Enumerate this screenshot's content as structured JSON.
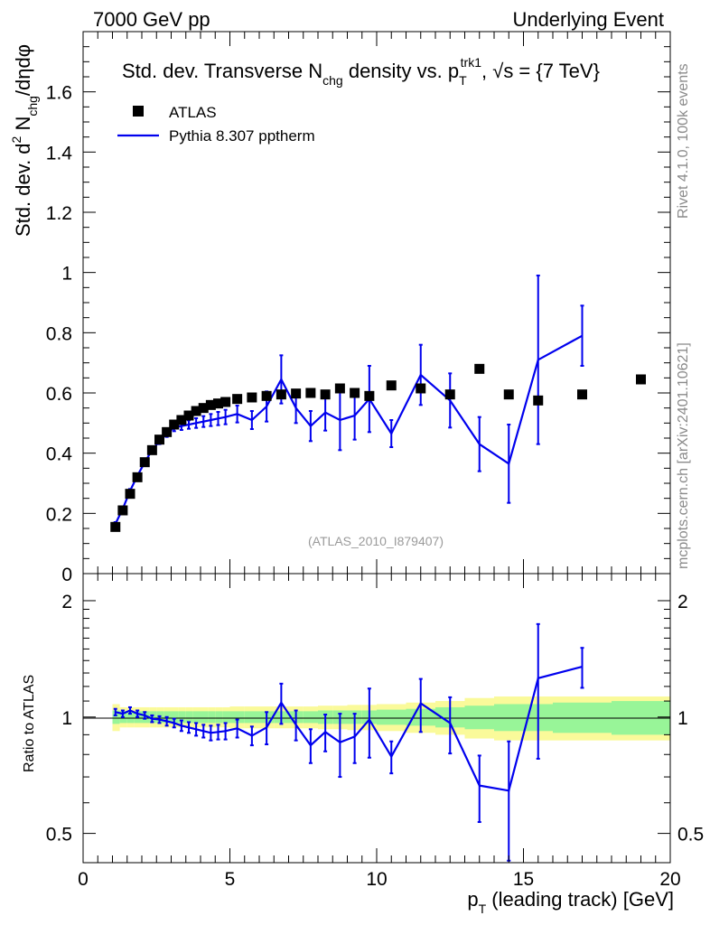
{
  "header": {
    "left": "7000 GeV pp",
    "right": "Underlying Event"
  },
  "side_labels": {
    "rivet": "Rivet 4.1.0,  100k events",
    "mcplots": "mcplots.cern.ch [arXiv:2401.10621]"
  },
  "chart_data": [
    {
      "type": "scatter",
      "title": "Std. dev. Transverse N_chg density vs. p_T^trk1, √s = {7 TeV}",
      "title_parts": {
        "t1": "Std. dev. Transverse N",
        "t2": "chg",
        "t3": " density vs. p",
        "t4": "T",
        "t5": "trk1",
        "t6": ", √s = {7 TeV}"
      },
      "ylabel_parts": {
        "a": "Std. dev. d",
        "b": "2",
        "c": " N",
        "d": "chg",
        "e": "/dηdφ"
      },
      "xlabel_parts": {
        "a": "p",
        "b": "T",
        "c": " (leading track) [GeV]"
      },
      "xlim": [
        0,
        20
      ],
      "ylim": [
        0,
        1.8
      ],
      "y_ticks": [
        0,
        0.2,
        0.4,
        0.6,
        0.8,
        1,
        1.2,
        1.4,
        1.6
      ],
      "y_tick_labels": [
        "0",
        "0.2",
        "0.4",
        "0.6",
        "0.8",
        "1",
        "1.2",
        "1.4",
        "1.6"
      ],
      "x_ticks": [
        0,
        5,
        10,
        15,
        20
      ],
      "x_tick_labels": [
        "0",
        "5",
        "10",
        "15",
        "20"
      ],
      "watermark": "(ATLAS_2010_I879407)",
      "legend": [
        {
          "name": "ATLAS",
          "marker": "square",
          "color": "#000000"
        },
        {
          "name": "Pythia 8.307 pptherm",
          "marker": "line",
          "color": "#0000ee"
        }
      ],
      "series": [
        {
          "name": "ATLAS",
          "x": [
            1.1,
            1.35,
            1.6,
            1.85,
            2.1,
            2.35,
            2.6,
            2.85,
            3.1,
            3.35,
            3.6,
            3.85,
            4.1,
            4.35,
            4.6,
            4.85,
            5.25,
            5.75,
            6.25,
            6.75,
            7.25,
            7.75,
            8.25,
            8.75,
            9.25,
            9.75,
            10.5,
            11.5,
            12.5,
            13.5,
            14.5,
            15.5,
            17.0,
            19.0
          ],
          "y": [
            0.155,
            0.21,
            0.265,
            0.32,
            0.37,
            0.41,
            0.445,
            0.47,
            0.495,
            0.51,
            0.525,
            0.54,
            0.55,
            0.56,
            0.565,
            0.57,
            0.58,
            0.585,
            0.59,
            0.595,
            0.598,
            0.6,
            0.595,
            0.615,
            0.6,
            0.59,
            0.625,
            0.615,
            0.595,
            0.68,
            0.595,
            0.575,
            0.595,
            0.645
          ]
        },
        {
          "name": "Pythia 8.307 pptherm",
          "x": [
            1.1,
            1.35,
            1.6,
            1.85,
            2.1,
            2.35,
            2.6,
            2.85,
            3.1,
            3.35,
            3.6,
            3.85,
            4.1,
            4.35,
            4.6,
            4.85,
            5.25,
            5.75,
            6.25,
            6.75,
            7.25,
            7.75,
            8.25,
            8.75,
            9.25,
            9.75,
            10.5,
            11.5,
            12.5,
            13.5,
            14.5,
            15.5,
            17.0
          ],
          "y": [
            0.165,
            0.215,
            0.275,
            0.325,
            0.37,
            0.41,
            0.44,
            0.465,
            0.485,
            0.49,
            0.495,
            0.5,
            0.505,
            0.51,
            0.515,
            0.52,
            0.53,
            0.51,
            0.555,
            0.645,
            0.55,
            0.49,
            0.535,
            0.51,
            0.525,
            0.58,
            0.465,
            0.66,
            0.575,
            0.43,
            0.365,
            0.71,
            0.79
          ],
          "yerr": [
            0.006,
            0.006,
            0.006,
            0.007,
            0.008,
            0.009,
            0.01,
            0.011,
            0.012,
            0.013,
            0.014,
            0.016,
            0.018,
            0.02,
            0.022,
            0.024,
            0.028,
            0.03,
            0.05,
            0.08,
            0.05,
            0.05,
            0.06,
            0.1,
            0.08,
            0.11,
            0.045,
            0.1,
            0.09,
            0.09,
            0.13,
            0.28,
            0.1
          ]
        }
      ]
    },
    {
      "type": "scatter",
      "title": "Ratio to ATLAS",
      "ylabel": "Ratio to ATLAS",
      "xlim": [
        0,
        20
      ],
      "ylim": [
        0.42,
        2.35
      ],
      "y_scale": "log",
      "y_ticks": [
        0.5,
        1,
        2
      ],
      "y_tick_labels": [
        "0.5",
        "1",
        "2"
      ],
      "x_ticks": [
        0,
        5,
        10,
        15,
        20
      ],
      "x_tick_labels": [
        "0",
        "5",
        "10",
        "15",
        "20"
      ],
      "bands": {
        "edges": [
          1.0,
          1.25,
          1.5,
          1.75,
          2.0,
          2.25,
          2.5,
          2.75,
          3.0,
          3.25,
          3.5,
          3.75,
          4.0,
          4.25,
          4.5,
          4.75,
          5.0,
          5.5,
          6.0,
          6.5,
          7.0,
          7.5,
          8.0,
          8.5,
          9.0,
          9.5,
          10.0,
          11.0,
          12.0,
          13.0,
          14.0,
          15.0,
          16.0,
          18.0,
          20.0
        ],
        "stat_halfwidth": [
          0.04,
          0.035,
          0.035,
          0.035,
          0.035,
          0.035,
          0.035,
          0.035,
          0.035,
          0.035,
          0.035,
          0.035,
          0.035,
          0.035,
          0.035,
          0.035,
          0.035,
          0.035,
          0.035,
          0.035,
          0.035,
          0.035,
          0.04,
          0.04,
          0.04,
          0.04,
          0.045,
          0.05,
          0.06,
          0.07,
          0.08,
          0.08,
          0.09,
          0.1
        ],
        "total_halfwidth": [
          0.08,
          0.06,
          0.06,
          0.06,
          0.06,
          0.06,
          0.06,
          0.06,
          0.06,
          0.06,
          0.06,
          0.06,
          0.06,
          0.06,
          0.06,
          0.06,
          0.065,
          0.065,
          0.065,
          0.065,
          0.065,
          0.065,
          0.07,
          0.07,
          0.075,
          0.075,
          0.08,
          0.09,
          0.1,
          0.12,
          0.13,
          0.13,
          0.13,
          0.13
        ],
        "stat_color": "#98f598",
        "total_color": "#fafa9a"
      },
      "series": [
        {
          "name": "Pythia 8.307 pptherm / ATLAS",
          "x": [
            1.1,
            1.35,
            1.6,
            1.85,
            2.1,
            2.35,
            2.6,
            2.85,
            3.1,
            3.35,
            3.6,
            3.85,
            4.1,
            4.35,
            4.6,
            4.85,
            5.25,
            5.75,
            6.25,
            6.75,
            7.25,
            7.75,
            8.25,
            8.75,
            9.25,
            9.75,
            10.5,
            11.5,
            12.5,
            13.5,
            14.5,
            15.5,
            17.0
          ],
          "y": [
            1.03,
            1.02,
            1.04,
            1.02,
            1.01,
            0.99,
            0.985,
            0.975,
            0.965,
            0.95,
            0.94,
            0.93,
            0.92,
            0.91,
            0.915,
            0.92,
            0.935,
            0.895,
            0.94,
            1.09,
            0.955,
            0.845,
            0.915,
            0.86,
            0.89,
            0.985,
            0.79,
            1.085,
            0.965,
            0.665,
            0.645,
            1.26,
            1.35
          ],
          "yerr": [
            0.02,
            0.02,
            0.02,
            0.02,
            0.02,
            0.02,
            0.02,
            0.025,
            0.025,
            0.03,
            0.03,
            0.035,
            0.035,
            0.04,
            0.04,
            0.045,
            0.05,
            0.05,
            0.09,
            0.13,
            0.085,
            0.085,
            0.1,
            0.16,
            0.13,
            0.2,
            0.075,
            0.17,
            0.16,
            0.13,
            0.22,
            0.48,
            0.16
          ]
        }
      ]
    }
  ]
}
